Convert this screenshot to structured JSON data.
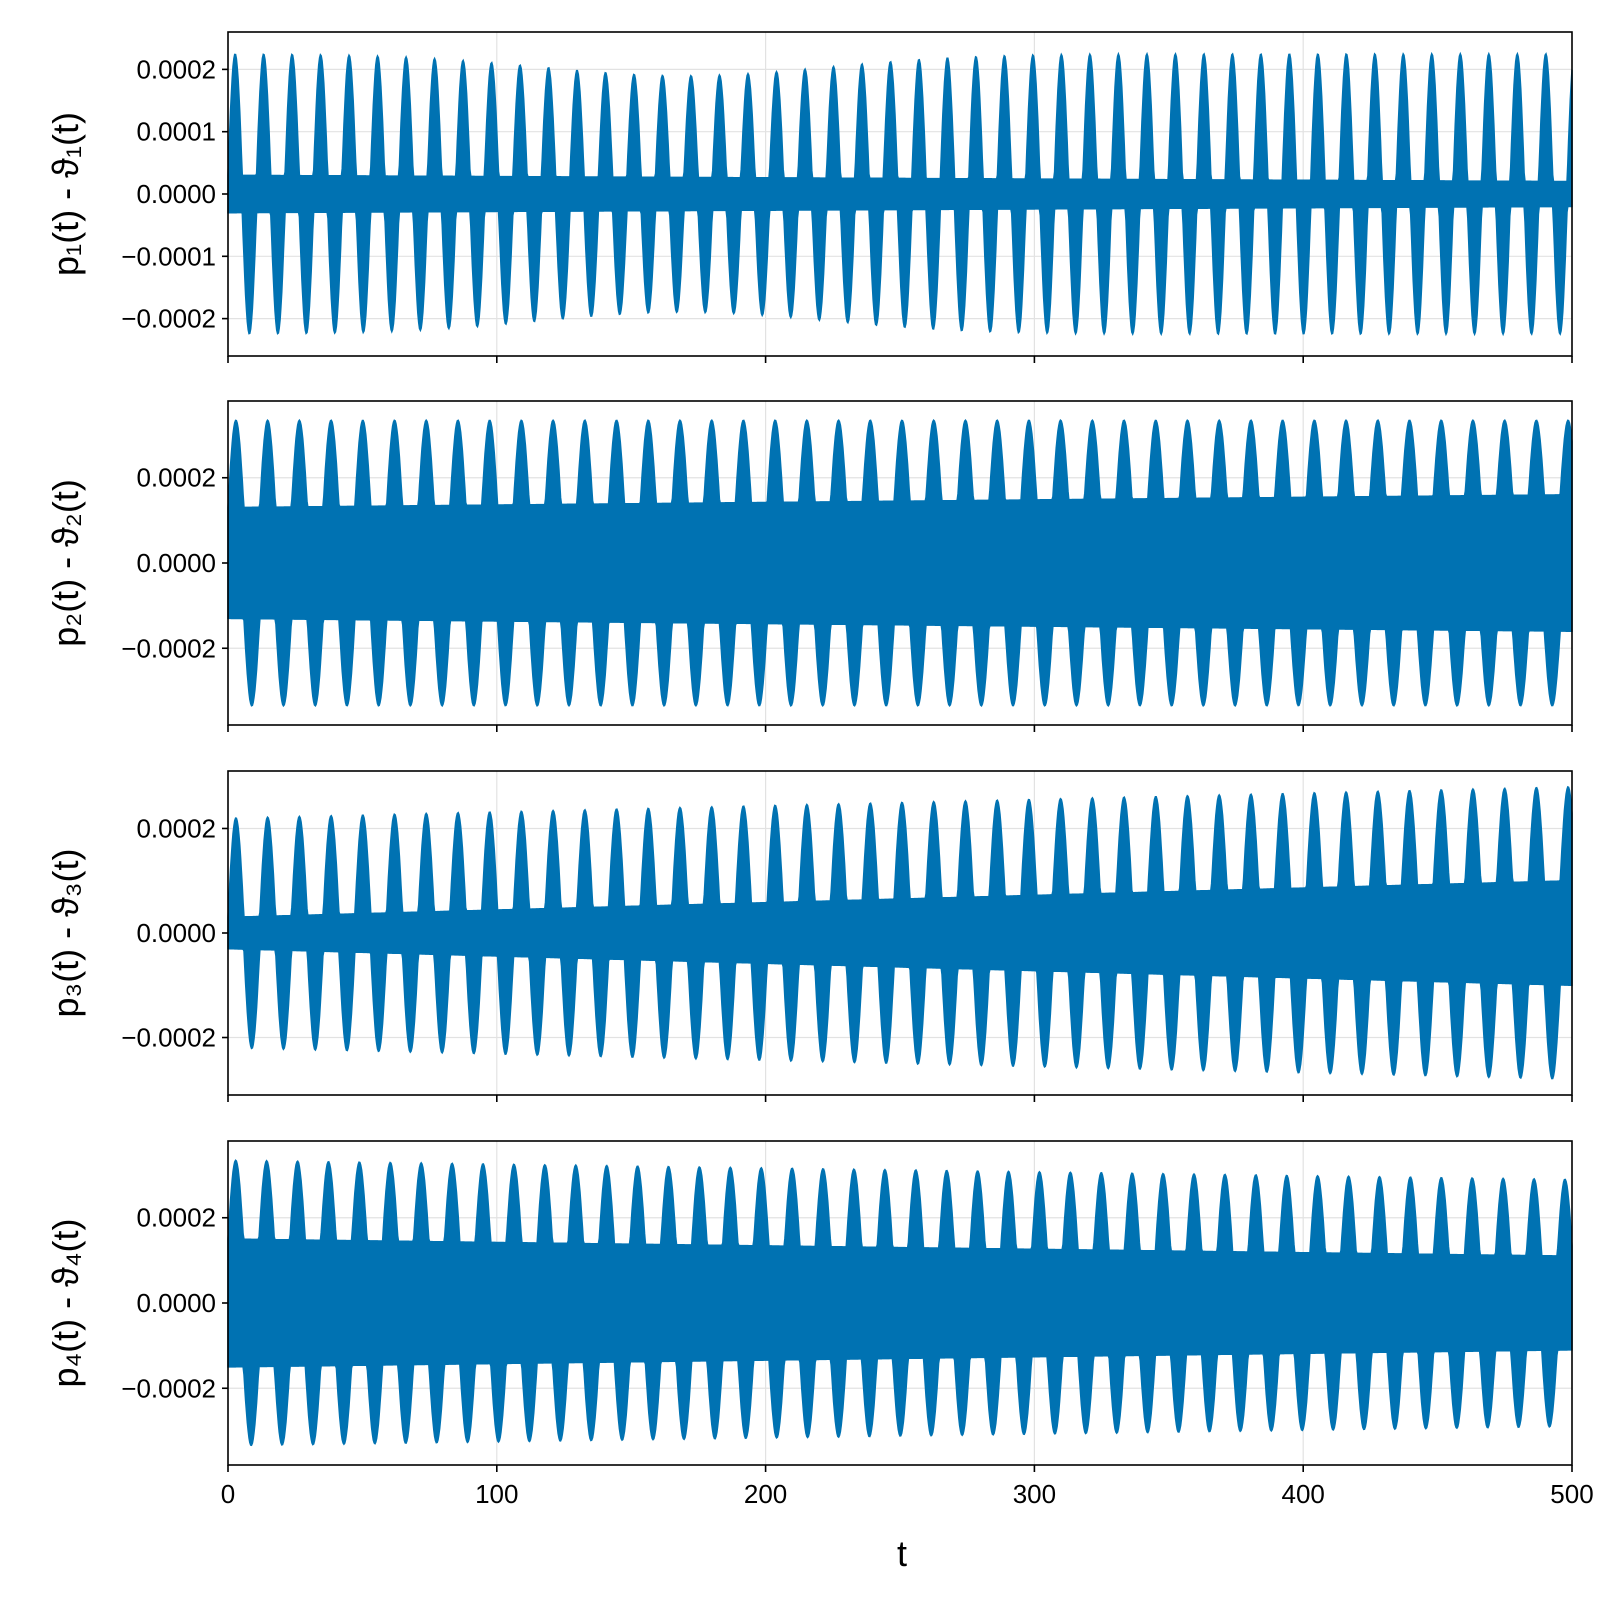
{
  "chart_data": {
    "type": "line",
    "color": "#0072b2",
    "x_axis": {
      "label": "t",
      "range": [
        0,
        500
      ],
      "ticks": [
        0,
        100,
        200,
        300,
        400,
        500
      ],
      "tick_labels": [
        "0",
        "100",
        "200",
        "300",
        "400",
        "500"
      ]
    },
    "grid": true,
    "panels": [
      {
        "ylabel": "p₁(t) - ϑ₁(t)",
        "ylim": [
          -0.00026,
          0.00026
        ],
        "y_ticks": [
          0.0002,
          0.0001,
          0.0,
          -0.0001,
          -0.0002
        ],
        "y_tick_labels": [
          "0.0002",
          "0.0001",
          "0.0000",
          "−0.0001",
          "−0.0002"
        ],
        "series": [
          {
            "beat_period": 10.6,
            "envelope_start": 0.000225,
            "envelope_end": 0.000225,
            "envelope_dip_center": 170,
            "envelope_dip_min": 0.00019,
            "inner_band_start": 3e-05,
            "inner_band_end": 2e-05
          }
        ]
      },
      {
        "ylabel": "p₂(t) - ϑ₂(t)",
        "ylim": [
          -0.00038,
          0.00038
        ],
        "y_ticks": [
          0.0002,
          0.0,
          -0.0002
        ],
        "y_tick_labels": [
          "0.0002",
          "0.0000",
          "−0.0002"
        ],
        "series": [
          {
            "beat_period": 11.8,
            "envelope_start": 0.000335,
            "envelope_end": 0.000335,
            "inner_band_start": 0.00013,
            "inner_band_end": 0.00016
          }
        ]
      },
      {
        "ylabel": "p₃(t) - ϑ₃(t)",
        "ylim": [
          -0.00031,
          0.00031
        ],
        "y_ticks": [
          0.0002,
          0.0,
          -0.0002
        ],
        "y_tick_labels": [
          "0.0002",
          "0.0000",
          "−0.0002"
        ],
        "series": [
          {
            "beat_period": 11.8,
            "envelope_start": 0.00022,
            "envelope_end": 0.00028,
            "inner_band_start": 3e-05,
            "inner_band_end": 0.0001
          }
        ]
      },
      {
        "ylabel": "p₄(t) - ϑ₄(t)",
        "ylim": [
          -0.00038,
          0.00038
        ],
        "y_ticks": [
          0.0002,
          0.0,
          -0.0002
        ],
        "y_tick_labels": [
          "0.0002",
          "0.0000",
          "−0.0002"
        ],
        "series": [
          {
            "beat_period": 11.5,
            "envelope_start": 0.000335,
            "envelope_end": 0.00029,
            "inner_band_start": 0.00015,
            "inner_band_end": 0.00011
          }
        ]
      }
    ]
  }
}
